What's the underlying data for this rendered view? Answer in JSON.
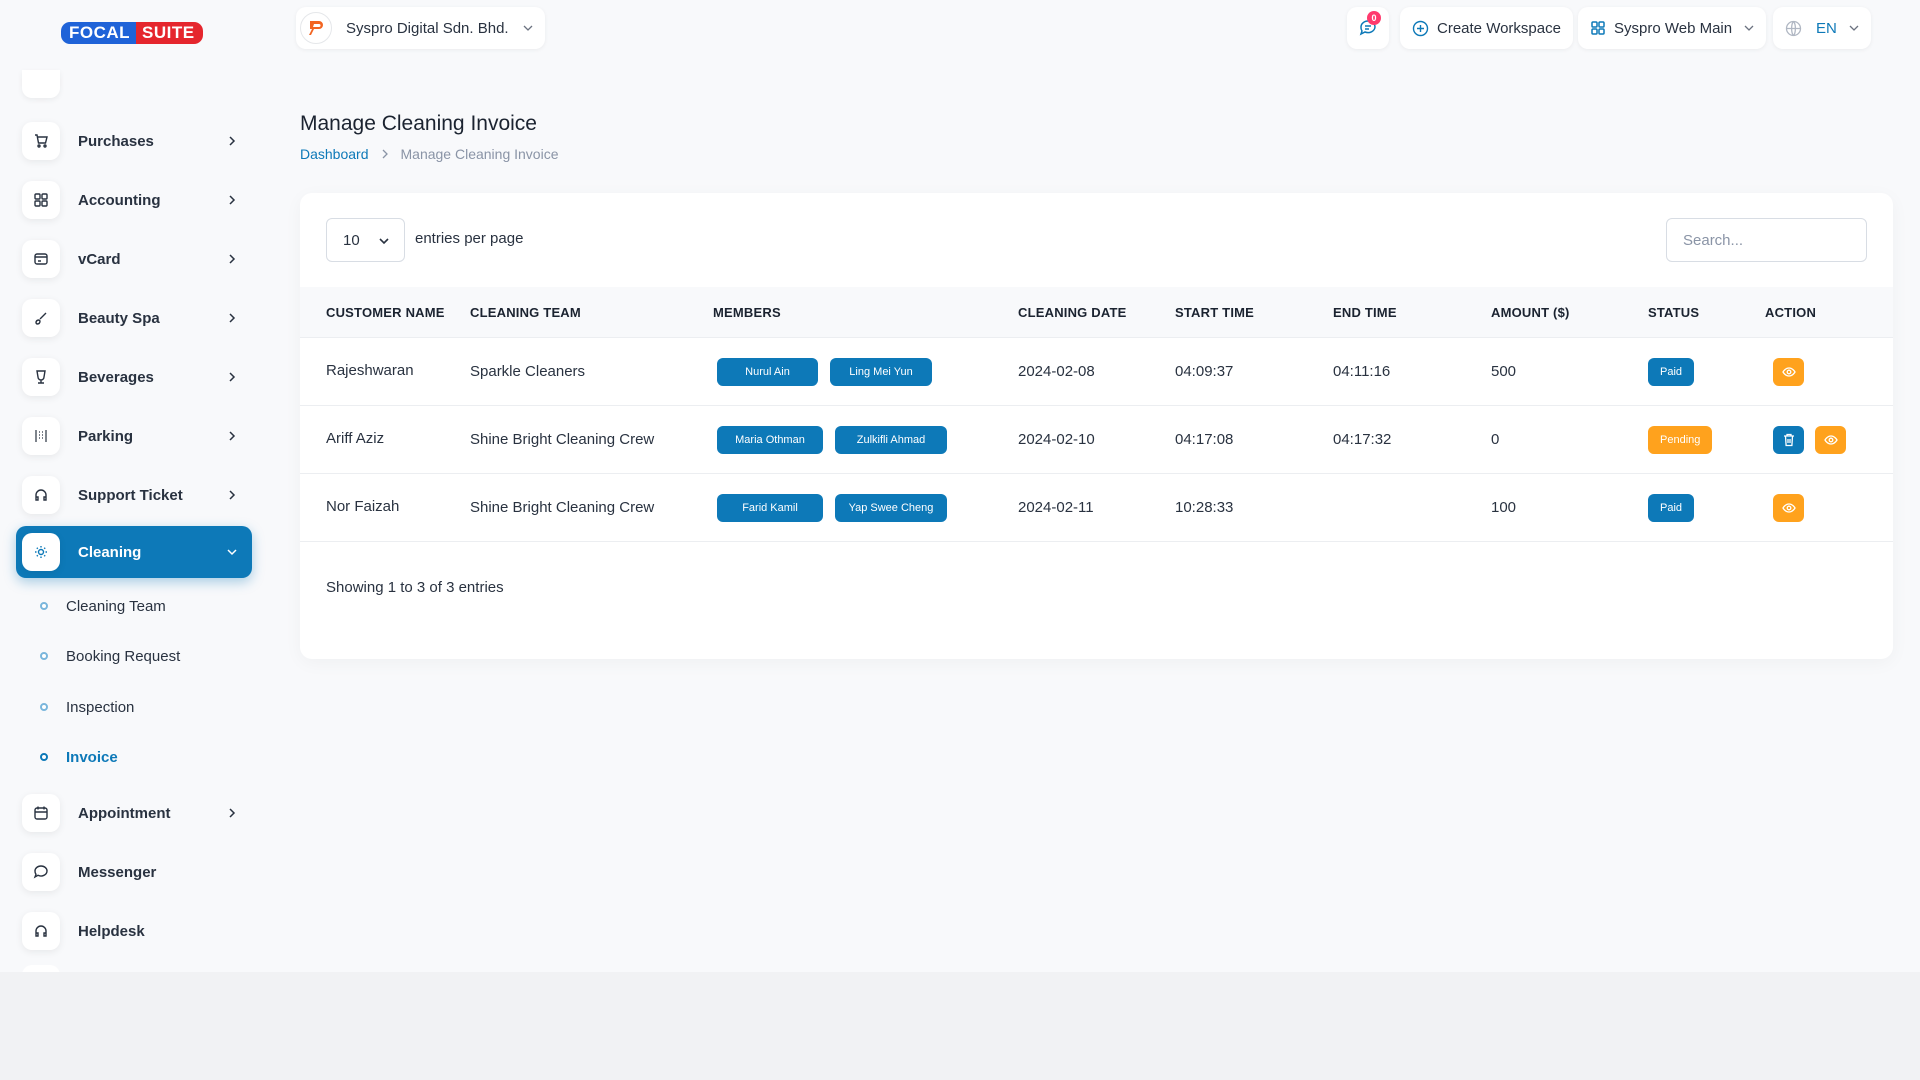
{
  "brand": {
    "part1": "FOCAL",
    "part2": "SUITE"
  },
  "header": {
    "company": "Syspro Digital Sdn. Bhd.",
    "notification_count": "0",
    "create_workspace": "Create Workspace",
    "workspace": "Syspro Web Main",
    "language": "EN"
  },
  "sidebar": {
    "items": [
      {
        "label": "Purchases",
        "icon": "cart-icon"
      },
      {
        "label": "Accounting",
        "icon": "grid-icon"
      },
      {
        "label": "vCard",
        "icon": "card-icon"
      },
      {
        "label": "Beauty Spa",
        "icon": "brush-icon"
      },
      {
        "label": "Beverages",
        "icon": "cup-icon"
      },
      {
        "label": "Parking",
        "icon": "parking-icon"
      },
      {
        "label": "Support Ticket",
        "icon": "headset-icon"
      },
      {
        "label": "Cleaning",
        "icon": "sun-icon"
      },
      {
        "label": "Appointment",
        "icon": "calendar-icon"
      },
      {
        "label": "Messenger",
        "icon": "chat-icon"
      },
      {
        "label": "Helpdesk",
        "icon": "headset-icon"
      }
    ],
    "cleaning_sub": [
      {
        "label": "Cleaning Team"
      },
      {
        "label": "Booking Request"
      },
      {
        "label": "Inspection"
      },
      {
        "label": "Invoice"
      }
    ]
  },
  "page": {
    "title": "Manage Cleaning Invoice",
    "breadcrumb": {
      "home": "Dashboard",
      "current": "Manage Cleaning Invoice"
    }
  },
  "table": {
    "per_page_value": "10",
    "per_page_label": "entries per page",
    "search_placeholder": "Search...",
    "headers": [
      "CUSTOMER NAME",
      "CLEANING TEAM",
      "MEMBERS",
      "CLEANING DATE",
      "START TIME",
      "END TIME",
      "AMOUNT ($)",
      "STATUS",
      "ACTION"
    ],
    "rows": [
      {
        "customer": "Rajeshwaran",
        "team": "Sparkle Cleaners",
        "members": [
          "Nurul Ain",
          "Ling Mei Yun"
        ],
        "date": "2024-02-08",
        "start": "04:09:37",
        "end": "04:11:16",
        "amount": "500",
        "status": "Paid"
      },
      {
        "customer": "Ariff Aziz",
        "team": "Shine Bright Cleaning Crew",
        "members": [
          "Maria Othman",
          "Zulkifli Ahmad"
        ],
        "date": "2024-02-10",
        "start": "04:17:08",
        "end": "04:17:32",
        "amount": "0",
        "status": "Pending"
      },
      {
        "customer": "Nor Faizah",
        "team": "Shine Bright Cleaning Crew",
        "members": [
          "Farid Kamil",
          "Yap Swee Cheng"
        ],
        "date": "2024-02-11",
        "start": "10:28:33",
        "end": "",
        "amount": "100",
        "status": "Paid"
      }
    ],
    "footer": "Showing 1 to 3 of 3 entries"
  },
  "colors": {
    "primary": "#0d79b8",
    "warning": "#ffa21d",
    "danger": "#ff3a6e"
  }
}
